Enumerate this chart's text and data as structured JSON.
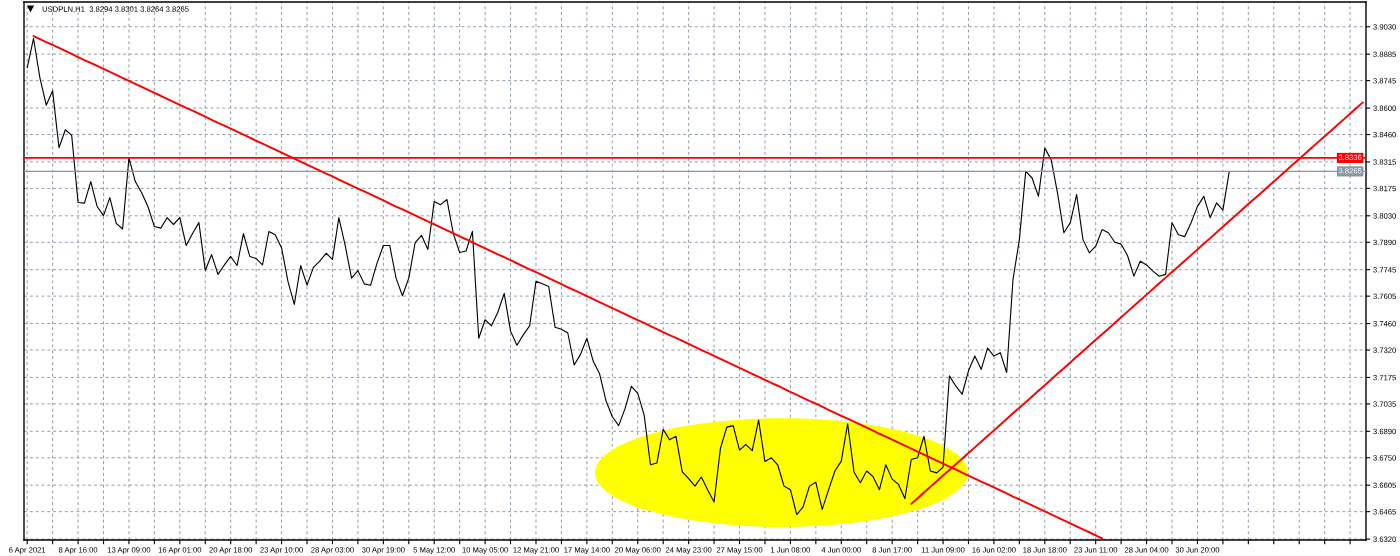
{
  "chart_data": {
    "type": "line",
    "title": "USDPLN,H1  3.8294 3.8301 3.8264 3.8265",
    "categories": [
      "6 Apr 2021",
      null,
      null,
      null,
      null,
      null,
      null,
      null,
      "8 Apr 16:00",
      null,
      null,
      null,
      null,
      null,
      null,
      null,
      "13 Apr 09:00",
      null,
      null,
      null,
      null,
      null,
      null,
      null,
      "16 Apr 01:00",
      null,
      null,
      null,
      null,
      null,
      null,
      null,
      "20 Apr 18:00",
      null,
      null,
      null,
      null,
      null,
      null,
      null,
      "23 Apr 10:00",
      null,
      null,
      null,
      null,
      null,
      null,
      null,
      "28 Apr 03:00",
      null,
      null,
      null,
      null,
      null,
      null,
      null,
      "30 Apr 19:00",
      null,
      null,
      null,
      null,
      null,
      null,
      null,
      "5 May 12:00",
      null,
      null,
      null,
      null,
      null,
      null,
      null,
      "10 May 05:00",
      null,
      null,
      null,
      null,
      null,
      null,
      null,
      "12 May 21:00",
      null,
      null,
      null,
      null,
      null,
      null,
      null,
      "17 May 14:00",
      null,
      null,
      null,
      null,
      null,
      null,
      null,
      "20 May 06:00",
      null,
      null,
      null,
      null,
      null,
      null,
      null,
      "24 May 23:00",
      null,
      null,
      null,
      null,
      null,
      null,
      null,
      "27 May 15:00",
      null,
      null,
      null,
      null,
      null,
      null,
      null,
      "1 Jun 08:00",
      null,
      null,
      null,
      null,
      null,
      null,
      null,
      "4 Jun 00:00",
      null,
      null,
      null,
      null,
      null,
      null,
      null,
      "8 Jun 17:00",
      null,
      null,
      null,
      null,
      null,
      null,
      null,
      "11 Jun 09:00",
      null,
      null,
      null,
      null,
      null,
      null,
      null,
      "16 Jun 02:00",
      null,
      null,
      null,
      null,
      null,
      null,
      null,
      "18 Jun 18:00",
      null,
      null,
      null,
      null,
      null,
      null,
      null,
      "23 Jun 11:00",
      null,
      null,
      null,
      null,
      null,
      null,
      null,
      "28 Jun 04:00",
      null,
      null,
      null,
      null,
      null,
      null,
      null,
      "30 Jun 20:00",
      null,
      null,
      null,
      null,
      null,
      null,
      null,
      null,
      null,
      null,
      null,
      null,
      null,
      null,
      null,
      null,
      null,
      null,
      null,
      null,
      null,
      null,
      null,
      null,
      null,
      null
    ],
    "ylim": [
      3.6315,
      3.9161
    ],
    "yticks": [
      {
        "value": 3.903,
        "label": "3.9030"
      },
      3.8885,
      3.8745,
      {
        "value": 3.86,
        "label": "3.8600"
      },
      {
        "value": 3.846,
        "label": "3.8460"
      },
      3.8315,
      3.8175,
      {
        "value": 3.803,
        "label": "3.8030"
      },
      {
        "value": 3.789,
        "label": "3.7890"
      },
      3.7745,
      3.7605,
      {
        "value": 3.746,
        "label": "3.7460"
      },
      {
        "value": 3.732,
        "label": "3.7320"
      },
      3.7175,
      3.7035,
      {
        "value": 3.689,
        "label": "3.6890"
      },
      {
        "value": 3.675,
        "label": "3.6750"
      },
      3.6605,
      3.6465,
      {
        "value": 3.632,
        "label": "3.6320"
      }
    ],
    "grid": true,
    "series": [
      {
        "color": "#000000",
        "values": [
          3.8813,
          3.8968,
          3.876,
          3.8615,
          3.8691,
          3.839,
          3.8485,
          3.8455,
          3.81,
          3.8097,
          3.8211,
          3.8079,
          3.8031,
          3.8126,
          3.799,
          3.796,
          3.8336,
          3.8211,
          3.8152,
          3.8078,
          3.7973,
          3.7965,
          3.802,
          3.7984,
          3.802,
          3.7873,
          3.7936,
          3.7994,
          3.7741,
          3.7825,
          3.772,
          3.777,
          3.7815,
          3.7767,
          3.7936,
          3.7815,
          3.7804,
          3.777,
          3.7947,
          3.793,
          3.786,
          3.7683,
          3.7561,
          3.7767,
          3.7663,
          3.7757,
          3.779,
          3.7832,
          3.78,
          3.802,
          3.7873,
          3.77,
          3.774,
          3.767,
          3.7663,
          3.7778,
          3.7873,
          3.7873,
          3.77,
          3.7607,
          3.77,
          3.7888,
          3.7927,
          3.7852,
          3.8106,
          3.8089,
          3.8116,
          3.7936,
          3.7836,
          3.7844,
          3.7948,
          3.7382,
          3.748,
          3.7448,
          3.752,
          3.762,
          3.742,
          3.7345,
          3.74,
          3.7448,
          3.7684,
          3.767,
          3.7656,
          3.744,
          3.743,
          3.741,
          3.7241,
          3.7297,
          3.7382,
          3.726,
          3.7194,
          3.7052,
          3.6967,
          3.692,
          3.701,
          3.7128,
          3.7091,
          3.6977,
          3.6713,
          3.6722,
          3.69,
          3.6845,
          3.6864,
          3.6675,
          3.664,
          3.66,
          3.6648,
          3.658,
          3.6516,
          3.68,
          3.6912,
          3.692,
          3.679,
          3.682,
          3.6788,
          3.6949,
          3.673,
          3.675,
          3.6713,
          3.66,
          3.6581,
          3.6449,
          3.649,
          3.66,
          3.662,
          3.6477,
          3.658,
          3.668,
          3.6732,
          3.693,
          3.6675,
          3.6618,
          3.668,
          3.665,
          3.6581,
          3.6713,
          3.6637,
          3.6609,
          3.6534,
          3.6741,
          3.675,
          3.6864,
          3.668,
          3.667,
          3.67,
          3.7183,
          3.713,
          3.7086,
          3.721,
          3.7288,
          3.7218,
          3.733,
          3.7288,
          3.7306,
          3.7201,
          3.7693,
          3.7904,
          3.8265,
          3.823,
          3.8133,
          3.8388,
          3.8327,
          3.815,
          3.794,
          3.7993,
          3.8142,
          3.7904,
          3.7834,
          3.7869,
          3.7957,
          3.794,
          3.789,
          3.788,
          3.782,
          3.7711,
          3.779,
          3.777,
          3.7737,
          3.771,
          3.772,
          3.7993,
          3.793,
          3.792,
          3.7993,
          3.808,
          3.8133,
          3.802,
          3.8098,
          3.806,
          3.8265,
          null,
          null,
          null,
          null,
          null,
          null,
          null,
          null,
          null,
          null,
          null,
          null,
          null,
          null,
          null,
          null,
          null,
          null,
          null,
          null,
          null
        ]
      },
      {
        "type": "line",
        "color": "#ff0000",
        "values": [
          null,
          3.8981,
          3.8965,
          3.8949,
          3.8934,
          3.8918,
          3.8902,
          3.8886,
          3.887,
          3.8854,
          3.8839,
          3.8823,
          3.8807,
          3.8791,
          3.8775,
          3.876,
          3.8744,
          3.8728,
          3.8712,
          3.8696,
          3.868,
          3.8665,
          3.8649,
          3.8633,
          3.8617,
          3.8601,
          3.8586,
          3.857,
          3.8554,
          3.8538,
          3.8522,
          3.8507,
          3.8491,
          3.8475,
          3.8459,
          3.8443,
          3.8427,
          3.8412,
          3.8396,
          3.838,
          3.8364,
          3.8348,
          3.8333,
          3.8317,
          3.8301,
          3.8285,
          3.8269,
          3.8253,
          3.8238,
          3.8222,
          3.8206,
          3.819,
          3.8174,
          3.8159,
          3.8143,
          3.8127,
          3.8111,
          3.8095,
          3.8079,
          3.8064,
          3.8048,
          3.8032,
          3.8016,
          3.8,
          3.7985,
          3.7969,
          3.7953,
          3.7937,
          3.7921,
          3.7906,
          3.789,
          3.7874,
          3.7858,
          3.7842,
          3.7826,
          3.7811,
          3.7795,
          3.7779,
          3.7763,
          3.7747,
          3.7732,
          3.7716,
          3.77,
          3.7684,
          3.7668,
          3.7652,
          3.7637,
          3.7621,
          3.7605,
          3.7589,
          3.7573,
          3.7558,
          3.7542,
          3.7526,
          3.751,
          3.7494,
          3.7478,
          3.7463,
          3.7447,
          3.7431,
          3.7415,
          3.7399,
          3.7384,
          3.7368,
          3.7352,
          3.7336,
          3.732,
          3.7305,
          3.7289,
          3.7273,
          3.7257,
          3.7241,
          3.7225,
          3.721,
          3.7194,
          3.7178,
          3.7162,
          3.7146,
          3.7131,
          3.7115,
          3.7099,
          3.7083,
          3.7067,
          3.7051,
          3.7036,
          3.702,
          3.7004,
          3.6988,
          3.6972,
          3.6957,
          3.6941,
          3.6925,
          3.6909,
          3.6893,
          3.6877,
          3.6862,
          3.6846,
          3.683,
          3.6814,
          3.6798,
          3.6783,
          3.6767,
          3.6751,
          3.6735,
          3.6719,
          3.6703,
          3.6688,
          3.6672,
          3.6656,
          3.664,
          3.6624,
          3.6609,
          3.6593,
          3.6577,
          3.6561,
          3.6545,
          3.653,
          3.6514,
          3.6498,
          3.6482,
          3.6466,
          3.645,
          3.6435,
          3.6419,
          3.6403,
          3.6387,
          3.6371,
          3.6356,
          3.634,
          3.6324,
          null,
          null,
          null,
          null,
          null,
          null,
          null,
          null,
          null,
          null,
          null,
          null,
          null,
          null,
          null,
          null,
          null,
          null,
          null,
          null,
          null,
          null,
          null,
          null,
          null,
          null,
          null,
          null,
          null,
          null,
          null,
          null,
          null,
          null,
          null,
          null,
          null,
          null,
          null,
          null,
          null
        ]
      },
      {
        "type": "line",
        "color": "#ff0000",
        "values": [
          null,
          null,
          null,
          null,
          null,
          null,
          null,
          null,
          null,
          null,
          null,
          null,
          null,
          null,
          null,
          null,
          null,
          null,
          null,
          null,
          null,
          null,
          null,
          null,
          null,
          null,
          null,
          null,
          null,
          null,
          null,
          null,
          null,
          null,
          null,
          null,
          null,
          null,
          null,
          null,
          null,
          null,
          null,
          null,
          null,
          null,
          null,
          null,
          null,
          null,
          null,
          null,
          null,
          null,
          null,
          null,
          null,
          null,
          null,
          null,
          null,
          null,
          null,
          null,
          null,
          null,
          null,
          null,
          null,
          null,
          null,
          null,
          null,
          null,
          null,
          null,
          null,
          null,
          null,
          null,
          null,
          null,
          null,
          null,
          null,
          null,
          null,
          null,
          null,
          null,
          null,
          null,
          null,
          null,
          null,
          null,
          null,
          null,
          null,
          null,
          null,
          null,
          null,
          null,
          null,
          null,
          null,
          null,
          null,
          null,
          null,
          null,
          null,
          null,
          null,
          null,
          null,
          null,
          null,
          null,
          null,
          null,
          null,
          null,
          null,
          null,
          null,
          null,
          null,
          null,
          null,
          null,
          null,
          null,
          null,
          null,
          null,
          null,
          null,
          3.6506,
          3.6536,
          3.6566,
          3.6596,
          3.6626,
          3.6656,
          3.6685,
          3.6715,
          3.6745,
          3.6775,
          3.6805,
          3.6835,
          3.6865,
          3.6895,
          3.6925,
          3.6955,
          3.6985,
          3.7015,
          3.7044,
          3.7074,
          3.7104,
          3.7134,
          3.7164,
          3.7194,
          3.7224,
          3.7254,
          3.7284,
          3.7314,
          3.7344,
          3.7374,
          3.7403,
          3.7433,
          3.7463,
          3.7493,
          3.7523,
          3.7553,
          3.7583,
          3.7613,
          3.7643,
          3.7673,
          3.7703,
          3.7733,
          3.7762,
          3.7792,
          3.7822,
          3.7852,
          3.7882,
          3.7912,
          3.7942,
          3.7972,
          3.8002,
          3.8032,
          3.8062,
          3.8092,
          3.8121,
          3.8151,
          3.8181,
          3.8211,
          3.8241,
          3.8271,
          3.8301,
          3.8331,
          3.8361,
          3.8391,
          3.8421,
          3.8451,
          3.848,
          3.851,
          3.854,
          3.857,
          3.86,
          3.863
        ]
      }
    ],
    "ref_lines": [
      {
        "axis": "y",
        "value": 3.8336,
        "label": "3.8336",
        "color": "#ff0000"
      },
      {
        "axis": "y",
        "value": 3.8265,
        "label": "3.8265",
        "color": "#8a96a3"
      }
    ]
  }
}
